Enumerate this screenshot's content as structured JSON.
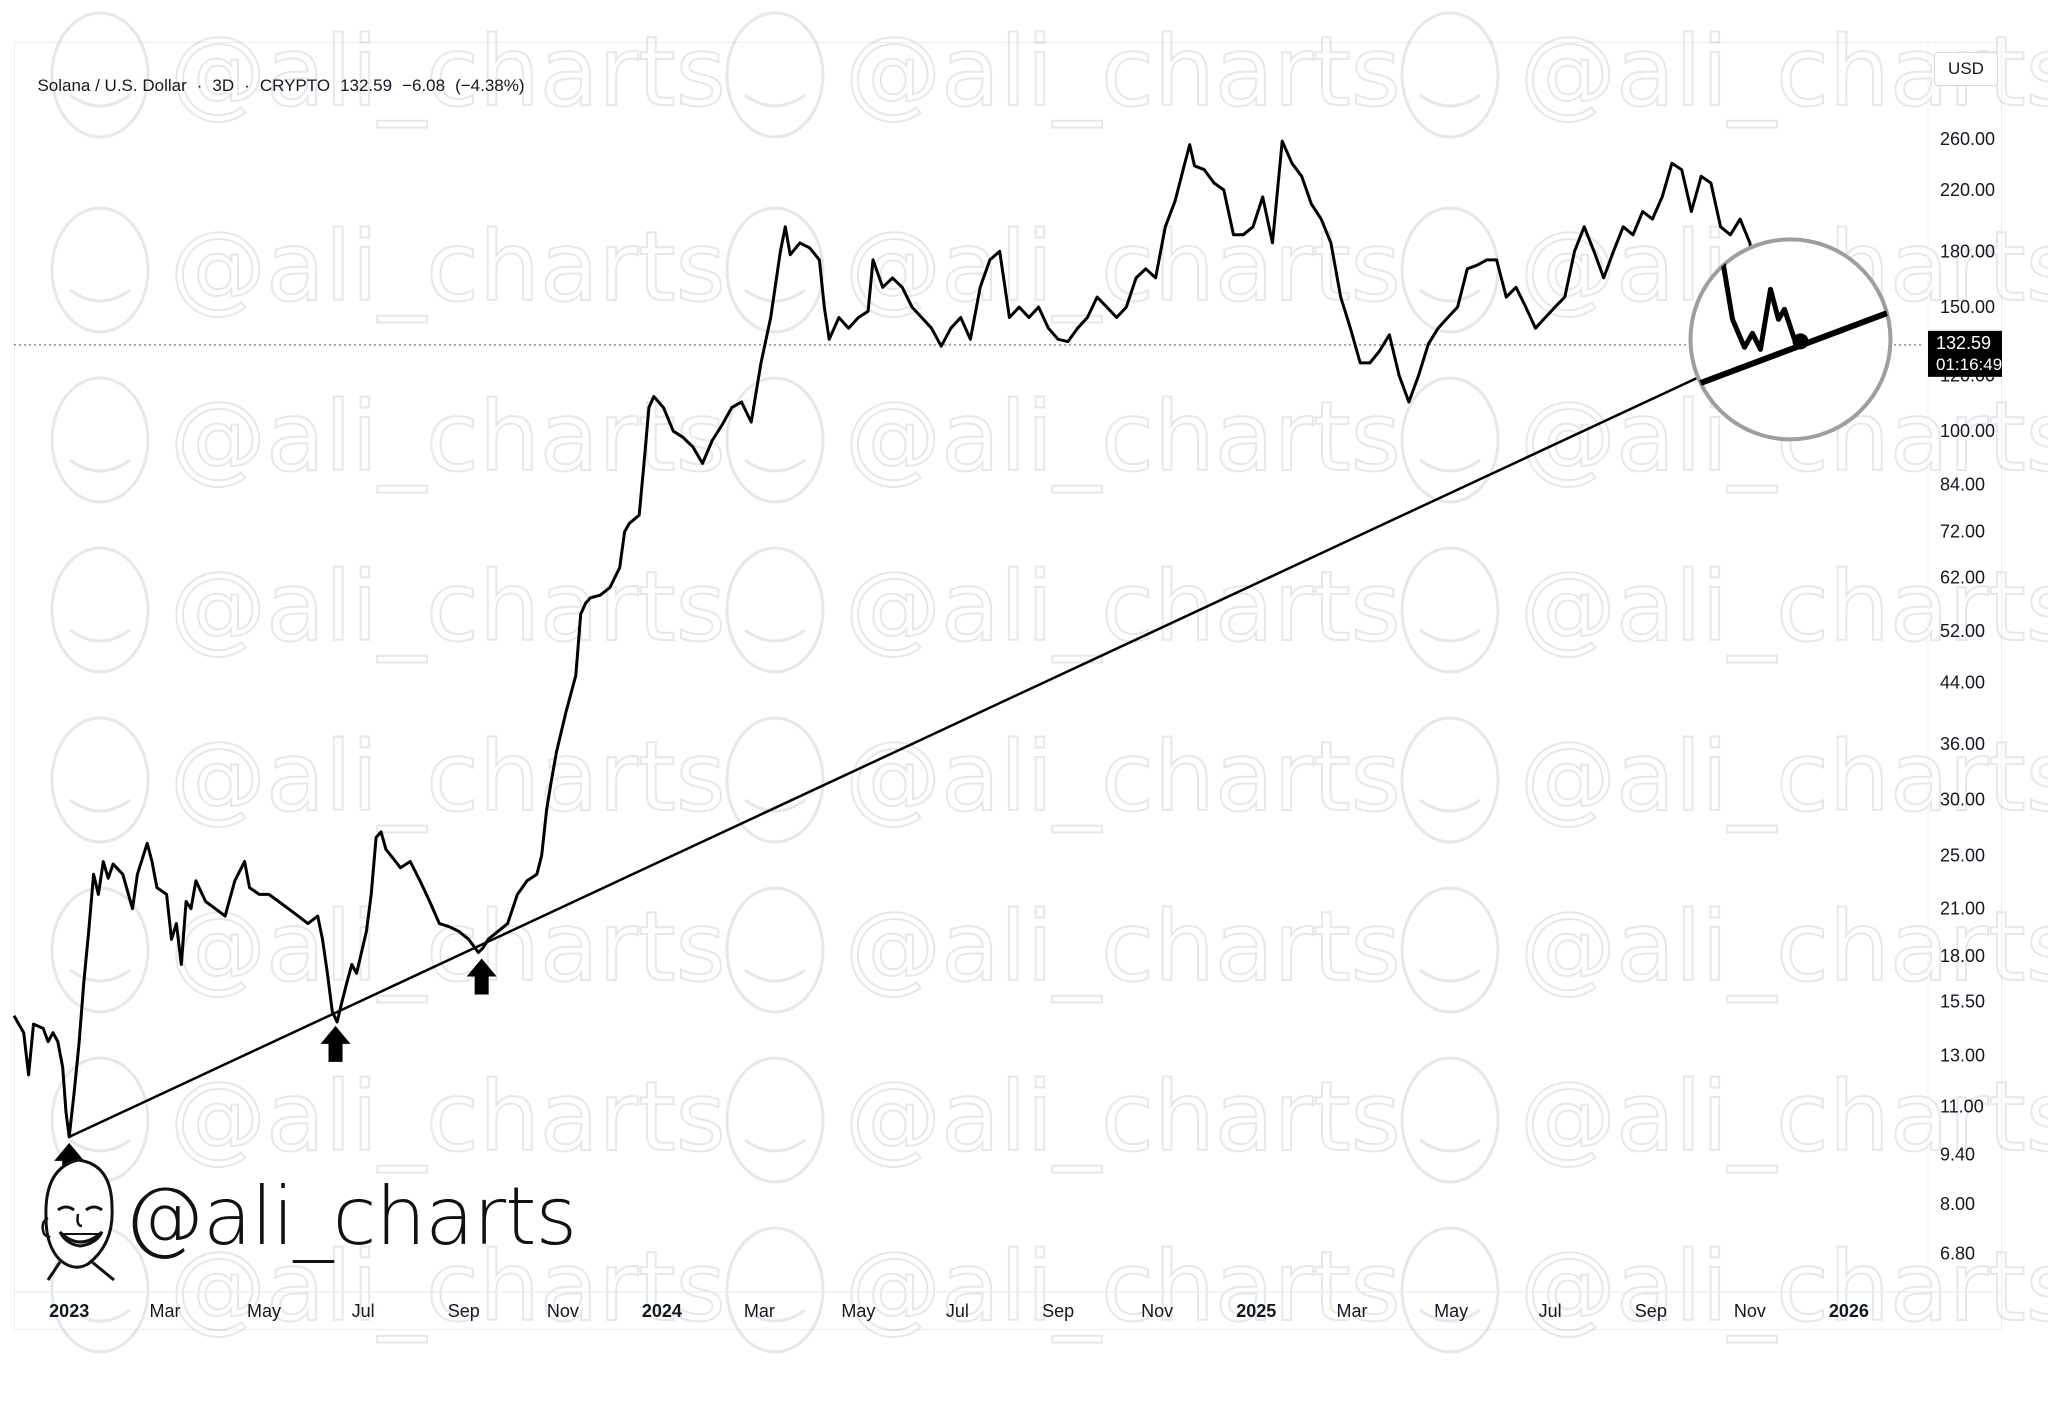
{
  "header": {
    "symbol": "Solana / U.S. Dollar",
    "interval": "3D",
    "exchange": "CRYPTO",
    "price": "132.59",
    "change": "−6.08",
    "change_pct": "(−4.38%)"
  },
  "currency": "USD",
  "price_tag": {
    "price": "132.59",
    "countdown": "01:16:49"
  },
  "watermark": "@ali_charts",
  "brand": {
    "handle": "@ali_charts"
  },
  "colors": {
    "line": "#000000",
    "price_tag_bg": "#000000",
    "circle": "#9e9e9e",
    "axis_text": "#131722"
  },
  "chart_data": {
    "type": "line",
    "title": "Solana / U.S. Dollar · 3D · CRYPTO",
    "y_scale": "log",
    "ylim": [
      6.0,
      300.0
    ],
    "xlim": [
      "2022-11-28",
      "2026-02-15"
    ],
    "y_ticks": [
      "260.00",
      "220.00",
      "180.00",
      "150.00",
      "120.00",
      "100.00",
      "84.00",
      "72.00",
      "62.00",
      "52.00",
      "44.00",
      "36.00",
      "30.00",
      "25.00",
      "21.00",
      "18.00",
      "15.50",
      "13.00",
      "11.00",
      "9.40",
      "8.00",
      "6.80"
    ],
    "x_ticks": [
      {
        "label": "2023",
        "date": "2023-01-01",
        "bold": true
      },
      {
        "label": "Mar",
        "date": "2023-03-01"
      },
      {
        "label": "May",
        "date": "2023-05-01"
      },
      {
        "label": "Jul",
        "date": "2023-07-01"
      },
      {
        "label": "Sep",
        "date": "2023-09-01"
      },
      {
        "label": "Nov",
        "date": "2023-11-01"
      },
      {
        "label": "2024",
        "date": "2024-01-01",
        "bold": true
      },
      {
        "label": "Mar",
        "date": "2024-03-01"
      },
      {
        "label": "May",
        "date": "2024-05-01"
      },
      {
        "label": "Jul",
        "date": "2024-07-01"
      },
      {
        "label": "Sep",
        "date": "2024-09-01"
      },
      {
        "label": "Nov",
        "date": "2024-11-01"
      },
      {
        "label": "2025",
        "date": "2025-01-01",
        "bold": true
      },
      {
        "label": "Mar",
        "date": "2025-03-01"
      },
      {
        "label": "May",
        "date": "2025-05-01"
      },
      {
        "label": "Jul",
        "date": "2025-07-01"
      },
      {
        "label": "Sep",
        "date": "2025-09-01"
      },
      {
        "label": "Nov",
        "date": "2025-11-01"
      },
      {
        "label": "2026",
        "date": "2026-01-01",
        "bold": true
      }
    ],
    "series": [
      {
        "points": [
          [
            "2022-11-28",
            14.8
          ],
          [
            "2022-12-04",
            14.0
          ],
          [
            "2022-12-07",
            12.2
          ],
          [
            "2022-12-10",
            14.4
          ],
          [
            "2022-12-16",
            14.2
          ],
          [
            "2022-12-19",
            13.6
          ],
          [
            "2022-12-22",
            14.0
          ],
          [
            "2022-12-25",
            13.6
          ],
          [
            "2022-12-28",
            12.5
          ],
          [
            "2022-12-30",
            10.8
          ],
          [
            "2023-01-01",
            9.96
          ],
          [
            "2023-01-04",
            11.5
          ],
          [
            "2023-01-07",
            13.5
          ],
          [
            "2023-01-10",
            16.5
          ],
          [
            "2023-01-13",
            19.5
          ],
          [
            "2023-01-16",
            23.5
          ],
          [
            "2023-01-19",
            22.0
          ],
          [
            "2023-01-22",
            24.5
          ],
          [
            "2023-01-25",
            23.2
          ],
          [
            "2023-01-28",
            24.3
          ],
          [
            "2023-02-03",
            23.5
          ],
          [
            "2023-02-09",
            21.0
          ],
          [
            "2023-02-12",
            23.5
          ],
          [
            "2023-02-18",
            26.0
          ],
          [
            "2023-02-21",
            24.5
          ],
          [
            "2023-02-24",
            22.5
          ],
          [
            "2023-03-02",
            22.0
          ],
          [
            "2023-03-05",
            19.0
          ],
          [
            "2023-03-08",
            20.0
          ],
          [
            "2023-03-11",
            17.5
          ],
          [
            "2023-03-14",
            21.5
          ],
          [
            "2023-03-17",
            21.0
          ],
          [
            "2023-03-20",
            23.0
          ],
          [
            "2023-03-26",
            21.5
          ],
          [
            "2023-04-01",
            21.0
          ],
          [
            "2023-04-07",
            20.5
          ],
          [
            "2023-04-13",
            23.0
          ],
          [
            "2023-04-19",
            24.5
          ],
          [
            "2023-04-22",
            22.5
          ],
          [
            "2023-04-28",
            22.0
          ],
          [
            "2023-05-04",
            22.0
          ],
          [
            "2023-05-10",
            21.5
          ],
          [
            "2023-05-16",
            21.0
          ],
          [
            "2023-05-22",
            20.5
          ],
          [
            "2023-05-28",
            20.0
          ],
          [
            "2023-06-03",
            20.5
          ],
          [
            "2023-06-06",
            19.0
          ],
          [
            "2023-06-09",
            17.0
          ],
          [
            "2023-06-12",
            15.0
          ],
          [
            "2023-06-15",
            14.5
          ],
          [
            "2023-06-18",
            15.5
          ],
          [
            "2023-06-21",
            16.5
          ],
          [
            "2023-06-24",
            17.5
          ],
          [
            "2023-06-27",
            17.0
          ],
          [
            "2023-07-03",
            19.5
          ],
          [
            "2023-07-06",
            22.0
          ],
          [
            "2023-07-09",
            26.5
          ],
          [
            "2023-07-12",
            27.0
          ],
          [
            "2023-07-15",
            25.5
          ],
          [
            "2023-07-21",
            24.5
          ],
          [
            "2023-07-24",
            24.0
          ],
          [
            "2023-07-30",
            24.5
          ],
          [
            "2023-08-05",
            23.0
          ],
          [
            "2023-08-11",
            21.5
          ],
          [
            "2023-08-17",
            20.0
          ],
          [
            "2023-08-23",
            19.8
          ],
          [
            "2023-08-29",
            19.5
          ],
          [
            "2023-09-04",
            19.0
          ],
          [
            "2023-09-10",
            18.2
          ],
          [
            "2023-09-13",
            18.5
          ],
          [
            "2023-09-16",
            19.0
          ],
          [
            "2023-09-22",
            19.5
          ],
          [
            "2023-09-28",
            20.0
          ],
          [
            "2023-10-04",
            22.0
          ],
          [
            "2023-10-10",
            23.0
          ],
          [
            "2023-10-16",
            23.5
          ],
          [
            "2023-10-19",
            25.0
          ],
          [
            "2023-10-22",
            29.0
          ],
          [
            "2023-10-25",
            32.0
          ],
          [
            "2023-10-28",
            35.0
          ],
          [
            "2023-11-03",
            40.0
          ],
          [
            "2023-11-09",
            45.0
          ],
          [
            "2023-11-12",
            55.0
          ],
          [
            "2023-11-15",
            57.0
          ],
          [
            "2023-11-18",
            58.0
          ],
          [
            "2023-11-24",
            58.5
          ],
          [
            "2023-11-30",
            60.0
          ],
          [
            "2023-12-06",
            64.0
          ],
          [
            "2023-12-09",
            72.0
          ],
          [
            "2023-12-12",
            74.0
          ],
          [
            "2023-12-18",
            76.0
          ],
          [
            "2023-12-21",
            90.0
          ],
          [
            "2023-12-24",
            108.0
          ],
          [
            "2023-12-27",
            112.0
          ],
          [
            "2024-01-02",
            108.0
          ],
          [
            "2024-01-08",
            100.0
          ],
          [
            "2024-01-14",
            98.0
          ],
          [
            "2024-01-20",
            95.0
          ],
          [
            "2024-01-26",
            90.0
          ],
          [
            "2024-02-01",
            97.0
          ],
          [
            "2024-02-07",
            102.0
          ],
          [
            "2024-02-13",
            108.0
          ],
          [
            "2024-02-19",
            110.0
          ],
          [
            "2024-02-25",
            103.0
          ],
          [
            "2024-03-02",
            125.0
          ],
          [
            "2024-03-08",
            145.0
          ],
          [
            "2024-03-14",
            180.0
          ],
          [
            "2024-03-17",
            195.0
          ],
          [
            "2024-03-20",
            178.0
          ],
          [
            "2024-03-26",
            185.0
          ],
          [
            "2024-04-01",
            182.0
          ],
          [
            "2024-04-07",
            175.0
          ],
          [
            "2024-04-10",
            150.0
          ],
          [
            "2024-04-13",
            135.0
          ],
          [
            "2024-04-19",
            145.0
          ],
          [
            "2024-04-25",
            140.0
          ],
          [
            "2024-05-01",
            145.0
          ],
          [
            "2024-05-07",
            148.0
          ],
          [
            "2024-05-10",
            175.0
          ],
          [
            "2024-05-16",
            160.0
          ],
          [
            "2024-05-22",
            165.0
          ],
          [
            "2024-05-28",
            160.0
          ],
          [
            "2024-06-03",
            150.0
          ],
          [
            "2024-06-09",
            145.0
          ],
          [
            "2024-06-15",
            140.0
          ],
          [
            "2024-06-21",
            132.0
          ],
          [
            "2024-06-27",
            140.0
          ],
          [
            "2024-07-03",
            145.0
          ],
          [
            "2024-07-09",
            135.0
          ],
          [
            "2024-07-15",
            160.0
          ],
          [
            "2024-07-21",
            175.0
          ],
          [
            "2024-07-27",
            180.0
          ],
          [
            "2024-08-02",
            145.0
          ],
          [
            "2024-08-08",
            150.0
          ],
          [
            "2024-08-14",
            145.0
          ],
          [
            "2024-08-20",
            150.0
          ],
          [
            "2024-08-26",
            140.0
          ],
          [
            "2024-09-01",
            135.0
          ],
          [
            "2024-09-07",
            134.0
          ],
          [
            "2024-09-13",
            140.0
          ],
          [
            "2024-09-19",
            145.0
          ],
          [
            "2024-09-25",
            155.0
          ],
          [
            "2024-10-01",
            150.0
          ],
          [
            "2024-10-07",
            145.0
          ],
          [
            "2024-10-13",
            150.0
          ],
          [
            "2024-10-19",
            165.0
          ],
          [
            "2024-10-25",
            170.0
          ],
          [
            "2024-10-31",
            165.0
          ],
          [
            "2024-11-06",
            195.0
          ],
          [
            "2024-11-12",
            212.0
          ],
          [
            "2024-11-18",
            240.0
          ],
          [
            "2024-11-21",
            255.0
          ],
          [
            "2024-11-24",
            238.0
          ],
          [
            "2024-11-30",
            235.0
          ],
          [
            "2024-12-06",
            225.0
          ],
          [
            "2024-12-12",
            220.0
          ],
          [
            "2024-12-18",
            190.0
          ],
          [
            "2024-12-24",
            190.0
          ],
          [
            "2024-12-30",
            195.0
          ],
          [
            "2025-01-05",
            215.0
          ],
          [
            "2025-01-11",
            185.0
          ],
          [
            "2025-01-17",
            258.0
          ],
          [
            "2025-01-23",
            240.0
          ],
          [
            "2025-01-29",
            230.0
          ],
          [
            "2025-02-04",
            210.0
          ],
          [
            "2025-02-10",
            200.0
          ],
          [
            "2025-02-16",
            185.0
          ],
          [
            "2025-02-22",
            155.0
          ],
          [
            "2025-02-28",
            140.0
          ],
          [
            "2025-03-06",
            125.0
          ],
          [
            "2025-03-12",
            125.0
          ],
          [
            "2025-03-18",
            130.0
          ],
          [
            "2025-03-24",
            137.0
          ],
          [
            "2025-03-30",
            120.0
          ],
          [
            "2025-04-05",
            110.0
          ],
          [
            "2025-04-11",
            120.0
          ],
          [
            "2025-04-17",
            133.0
          ],
          [
            "2025-04-23",
            140.0
          ],
          [
            "2025-04-29",
            145.0
          ],
          [
            "2025-05-05",
            150.0
          ],
          [
            "2025-05-11",
            170.0
          ],
          [
            "2025-05-17",
            172.0
          ],
          [
            "2025-05-23",
            175.0
          ],
          [
            "2025-05-29",
            175.0
          ],
          [
            "2025-06-04",
            155.0
          ],
          [
            "2025-06-10",
            160.0
          ],
          [
            "2025-06-16",
            150.0
          ],
          [
            "2025-06-22",
            140.0
          ],
          [
            "2025-06-28",
            145.0
          ],
          [
            "2025-07-04",
            150.0
          ],
          [
            "2025-07-10",
            155.0
          ],
          [
            "2025-07-16",
            180.0
          ],
          [
            "2025-07-22",
            195.0
          ],
          [
            "2025-07-28",
            180.0
          ],
          [
            "2025-08-03",
            165.0
          ],
          [
            "2025-08-09",
            180.0
          ],
          [
            "2025-08-15",
            195.0
          ],
          [
            "2025-08-21",
            190.0
          ],
          [
            "2025-08-27",
            205.0
          ],
          [
            "2025-09-02",
            200.0
          ],
          [
            "2025-09-08",
            215.0
          ],
          [
            "2025-09-14",
            240.0
          ],
          [
            "2025-09-20",
            235.0
          ],
          [
            "2025-09-26",
            205.0
          ],
          [
            "2025-10-02",
            230.0
          ],
          [
            "2025-10-08",
            225.0
          ],
          [
            "2025-10-14",
            195.0
          ],
          [
            "2025-10-20",
            190.0
          ],
          [
            "2025-10-26",
            200.0
          ],
          [
            "2025-11-01",
            185.0
          ],
          [
            "2025-11-04",
            160.0
          ],
          [
            "2025-11-07",
            145.0
          ],
          [
            "2025-11-10",
            155.0
          ],
          [
            "2025-11-13",
            142.0
          ],
          [
            "2025-11-16",
            140.0
          ],
          [
            "2025-11-19",
            135.0
          ],
          [
            "2025-11-22",
            132.59
          ]
        ]
      }
    ],
    "annotations": {
      "trendline": [
        [
          "2023-01-01",
          9.96
        ],
        [
          "2025-12-10",
          142.0
        ]
      ],
      "arrows": [
        [
          "2023-01-01",
          9.96
        ],
        [
          "2023-06-14",
          14.6
        ],
        [
          "2023-09-12",
          18.2
        ]
      ],
      "circle": {
        "center": [
          "2025-11-26",
          135.0
        ]
      },
      "price_line": 132.59
    }
  }
}
